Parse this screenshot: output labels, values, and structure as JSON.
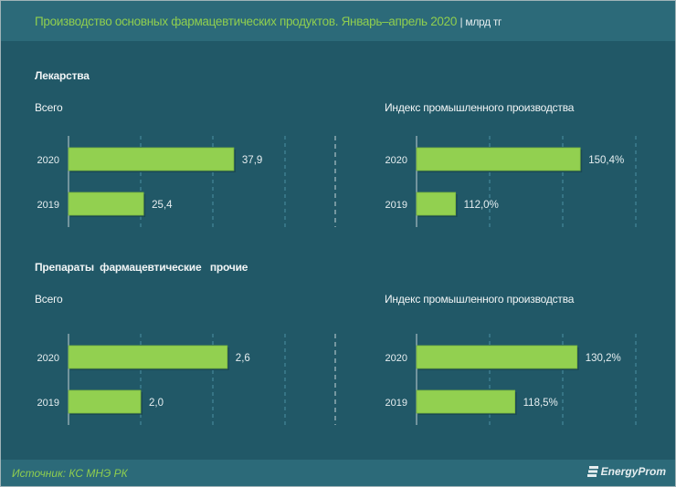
{
  "title": "Производство основных фармацевтических продуктов. Январь–апрель 2020",
  "unit": "| млрд тг",
  "sections": [
    {
      "title": "Лекарства",
      "left_label": "Всего",
      "right_label": "Индекс промышленного производства"
    },
    {
      "title": "Препараты  фармацевтические   прочие",
      "left_label": "Всего",
      "right_label": "Индекс промышленного производства"
    }
  ],
  "source": "Источник: КС МНЭ РК",
  "logo": "EnergyProm",
  "colors": {
    "bar": "#92d050",
    "background": "#215867",
    "header": "#2c6a79",
    "title": "#8fce4f"
  },
  "chart_data": [
    {
      "type": "bar",
      "orientation": "horizontal",
      "section": "Лекарства",
      "subtitle": "Всего",
      "categories": [
        "2020",
        "2019"
      ],
      "values": [
        37.9,
        25.4
      ],
      "labels": [
        "37,9",
        "25,4"
      ],
      "xlim": [
        15,
        55
      ],
      "grid": true
    },
    {
      "type": "bar",
      "orientation": "horizontal",
      "section": "Лекарства",
      "subtitle": "Индекс промышленного производства",
      "categories": [
        "2020",
        "2019"
      ],
      "values": [
        150.4,
        112.0
      ],
      "labels": [
        "150,4%",
        "112,0%"
      ],
      "xlim": [
        100,
        190
      ],
      "grid": true
    },
    {
      "type": "bar",
      "orientation": "horizontal",
      "section": "Препараты фармацевтические прочие",
      "subtitle": "Всего",
      "categories": [
        "2020",
        "2019"
      ],
      "values": [
        2.6,
        2.0
      ],
      "labels": [
        "2,6",
        "2,0"
      ],
      "xlim": [
        1.5,
        3.5
      ],
      "grid": true
    },
    {
      "type": "bar",
      "orientation": "horizontal",
      "section": "Препараты фармацевтические прочие",
      "subtitle": "Индекс промышленного производства",
      "categories": [
        "2020",
        "2019"
      ],
      "values": [
        130.2,
        118.5
      ],
      "labels": [
        "130,2%",
        "118,5%"
      ],
      "xlim": [
        100,
        155
      ],
      "grid": true
    }
  ]
}
